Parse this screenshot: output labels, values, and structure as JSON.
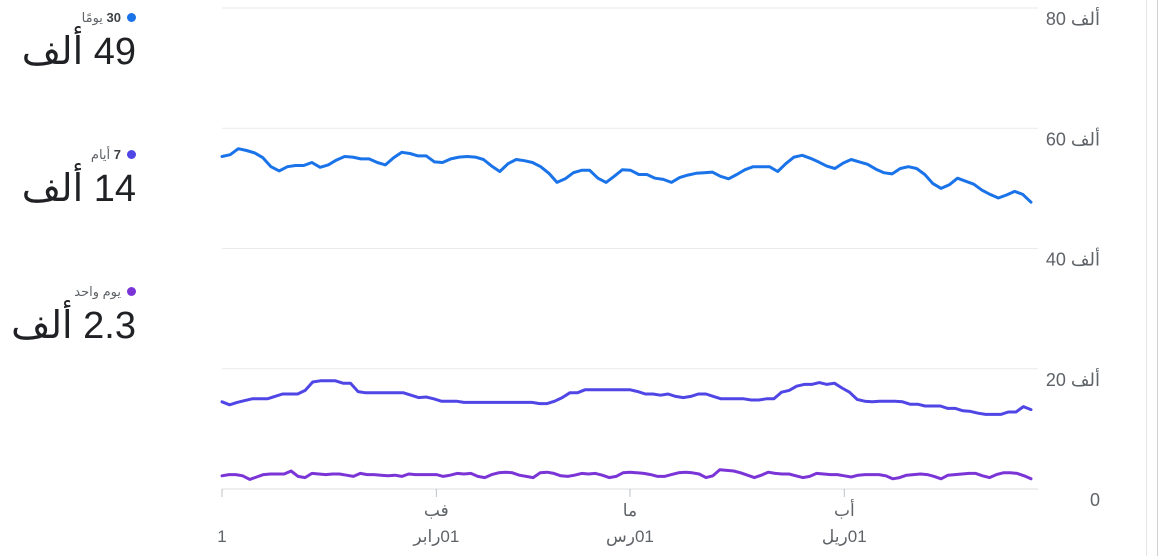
{
  "legend": [
    {
      "count": "30",
      "label": "يومًا",
      "value": "49 ألف",
      "color": "#1a73e8"
    },
    {
      "count": "7",
      "label": "أيام",
      "value": "14 ألف",
      "color": "#4f46e5"
    },
    {
      "count": "",
      "label": "يوم واحد",
      "value": "2.3 ألف",
      "color": "#7b35d6"
    }
  ],
  "chart_data": {
    "type": "line",
    "ylim": [
      0,
      80000
    ],
    "yticks": [
      {
        "value": 80000,
        "label": "80 ألف"
      },
      {
        "value": 60000,
        "label": "60 ألف"
      },
      {
        "value": 40000,
        "label": "40 ألف"
      },
      {
        "value": 20000,
        "label": "20 ألف"
      },
      {
        "value": 0,
        "label": "0"
      }
    ],
    "xticks": [
      {
        "index": 0,
        "top": "",
        "bottom": "1"
      },
      {
        "index": 31,
        "top": "فب",
        "bottom": "01رابر"
      },
      {
        "index": 59,
        "top": "ما",
        "bottom": "01رس"
      },
      {
        "index": 90,
        "top": "أب",
        "bottom": "01ريل"
      }
    ],
    "grid": true,
    "series": [
      {
        "name": "30 يومًا",
        "color": "#1a73e8",
        "values": [
          55300,
          55600,
          56600,
          56300,
          55900,
          55100,
          53600,
          52900,
          53600,
          53800,
          53800,
          54300,
          53500,
          53900,
          54700,
          55300,
          55200,
          54900,
          54900,
          54300,
          53900,
          55100,
          56000,
          55800,
          55400,
          55400,
          54400,
          54300,
          54900,
          55200,
          55300,
          55200,
          54800,
          53700,
          52800,
          54100,
          54800,
          54600,
          54300,
          53600,
          52500,
          51000,
          51600,
          52600,
          53000,
          53000,
          51700,
          51000,
          52000,
          53100,
          53000,
          52300,
          52300,
          51700,
          51500,
          51000,
          51800,
          52200,
          52500,
          52600,
          52700,
          52000,
          51600,
          52300,
          53100,
          53600,
          53600,
          53600,
          52800,
          54100,
          55200,
          55500,
          55000,
          54400,
          53700,
          53300,
          54200,
          54800,
          54400,
          54000,
          53200,
          52600,
          52400,
          53300,
          53600,
          53300,
          52300,
          50800,
          50000,
          50600,
          51700,
          51200,
          50700,
          49700,
          49000,
          48400,
          48900,
          49500,
          49000,
          47700
        ]
      },
      {
        "name": "7 أيام",
        "color": "#4f46e5",
        "values": [
          14500,
          14000,
          14400,
          14700,
          15000,
          15000,
          15000,
          15400,
          15800,
          15800,
          15800,
          16400,
          17800,
          18000,
          18000,
          18000,
          17600,
          17600,
          16200,
          16000,
          16000,
          16000,
          16000,
          16000,
          16000,
          15600,
          15200,
          15300,
          15000,
          14600,
          14600,
          14600,
          14400,
          14400,
          14400,
          14400,
          14400,
          14400,
          14400,
          14400,
          14400,
          14400,
          14200,
          14200,
          14600,
          15200,
          16000,
          16000,
          16500,
          16500,
          16500,
          16500,
          16500,
          16500,
          16500,
          16200,
          15800,
          15800,
          15600,
          15800,
          15400,
          15200,
          15400,
          15800,
          15800,
          15400,
          15000,
          15000,
          15000,
          15000,
          14800,
          14800,
          15000,
          15000,
          16100,
          16400,
          17100,
          17400,
          17400,
          17700,
          17400,
          17600,
          16800,
          16100,
          14900,
          14600,
          14500,
          14600,
          14600,
          14600,
          14500,
          14100,
          14100,
          13800,
          13800,
          13800,
          13400,
          13400,
          13000,
          12900,
          12600,
          12400,
          12400,
          12400,
          12800,
          12800,
          13700,
          13200
        ]
      },
      {
        "name": "يوم واحد",
        "color": "#7b35d6",
        "values": [
          2200,
          2400,
          2400,
          2200,
          1600,
          2000,
          2400,
          2500,
          2500,
          2500,
          3000,
          2100,
          1900,
          2600,
          2500,
          2400,
          2500,
          2500,
          2300,
          2100,
          2600,
          2400,
          2400,
          2300,
          2200,
          2300,
          2100,
          2500,
          2400,
          2400,
          2400,
          2400,
          2100,
          2300,
          2600,
          2500,
          2600,
          2100,
          1900,
          2400,
          2700,
          2800,
          2700,
          2300,
          2100,
          1900,
          2700,
          2800,
          2600,
          2200,
          2100,
          2300,
          2600,
          2500,
          2600,
          2300,
          1900,
          2100,
          2700,
          2800,
          2700,
          2600,
          2400,
          2100,
          2100,
          2400,
          2700,
          2800,
          2700,
          2500,
          1900,
          2200,
          3200,
          3100,
          3000,
          2700,
          2300,
          1900,
          2300,
          2800,
          2600,
          2500,
          2500,
          2200,
          1900,
          2100,
          2600,
          2500,
          2400,
          2400,
          2200,
          2000,
          2300,
          2400,
          2400,
          2400,
          2200,
          1700,
          1900,
          2300,
          2400,
          2500,
          2400,
          2100,
          1700,
          2300,
          2400,
          2500,
          2600,
          2600,
          2200,
          1900,
          2400,
          2700,
          2700,
          2600,
          2200,
          1700
        ]
      }
    ]
  }
}
